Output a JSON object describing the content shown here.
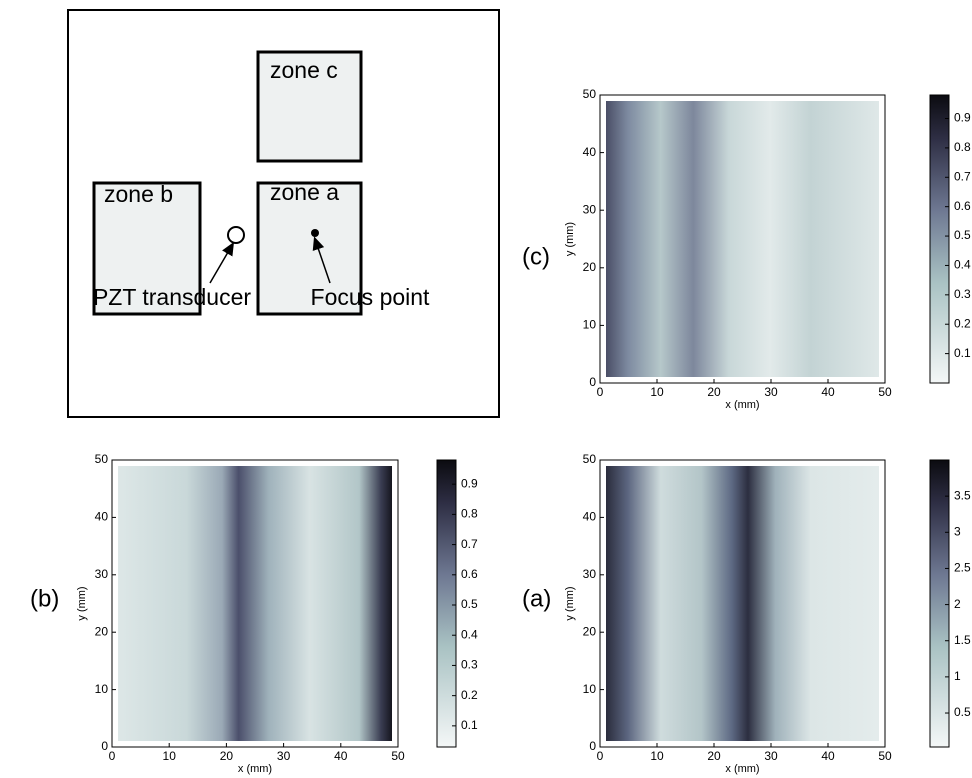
{
  "diagram": {
    "zones": [
      "zone c",
      "zone b",
      "zone a"
    ],
    "transducer_label": "PZT transducer",
    "focus_label": "Focus point"
  },
  "panels": [
    {
      "label": "(c)",
      "x_label": "x (mm)",
      "y_label": "y (mm)",
      "xlim": [
        0,
        50
      ],
      "ylim": [
        0,
        50
      ],
      "xticks": [
        0,
        10,
        20,
        30,
        40,
        50
      ],
      "yticks": [
        0,
        10,
        20,
        30,
        40,
        50
      ],
      "clim": [
        0,
        0.98
      ],
      "cticks": [
        0.1,
        0.2,
        0.3,
        0.4,
        0.5,
        0.6,
        0.7,
        0.8,
        0.9
      ]
    },
    {
      "label": "(b)",
      "x_label": "x (mm)",
      "y_label": "y (mm)",
      "xlim": [
        0,
        50
      ],
      "ylim": [
        0,
        50
      ],
      "xticks": [
        0,
        10,
        20,
        30,
        40,
        50
      ],
      "yticks": [
        0,
        10,
        20,
        30,
        40,
        50
      ],
      "clim": [
        0.03,
        0.98
      ],
      "cticks": [
        0.1,
        0.2,
        0.3,
        0.4,
        0.5,
        0.6,
        0.7,
        0.8,
        0.9
      ]
    },
    {
      "label": "(a)",
      "x_label": "x (mm)",
      "y_label": "y (mm)",
      "xlim": [
        0,
        50
      ],
      "ylim": [
        0,
        50
      ],
      "xticks": [
        0,
        10,
        20,
        30,
        40,
        50
      ],
      "yticks": [
        0,
        10,
        20,
        30,
        40,
        50
      ],
      "clim": [
        0.03,
        4.0
      ],
      "cticks": [
        0.5,
        1,
        1.5,
        2,
        2.5,
        3,
        3.5
      ]
    }
  ]
}
